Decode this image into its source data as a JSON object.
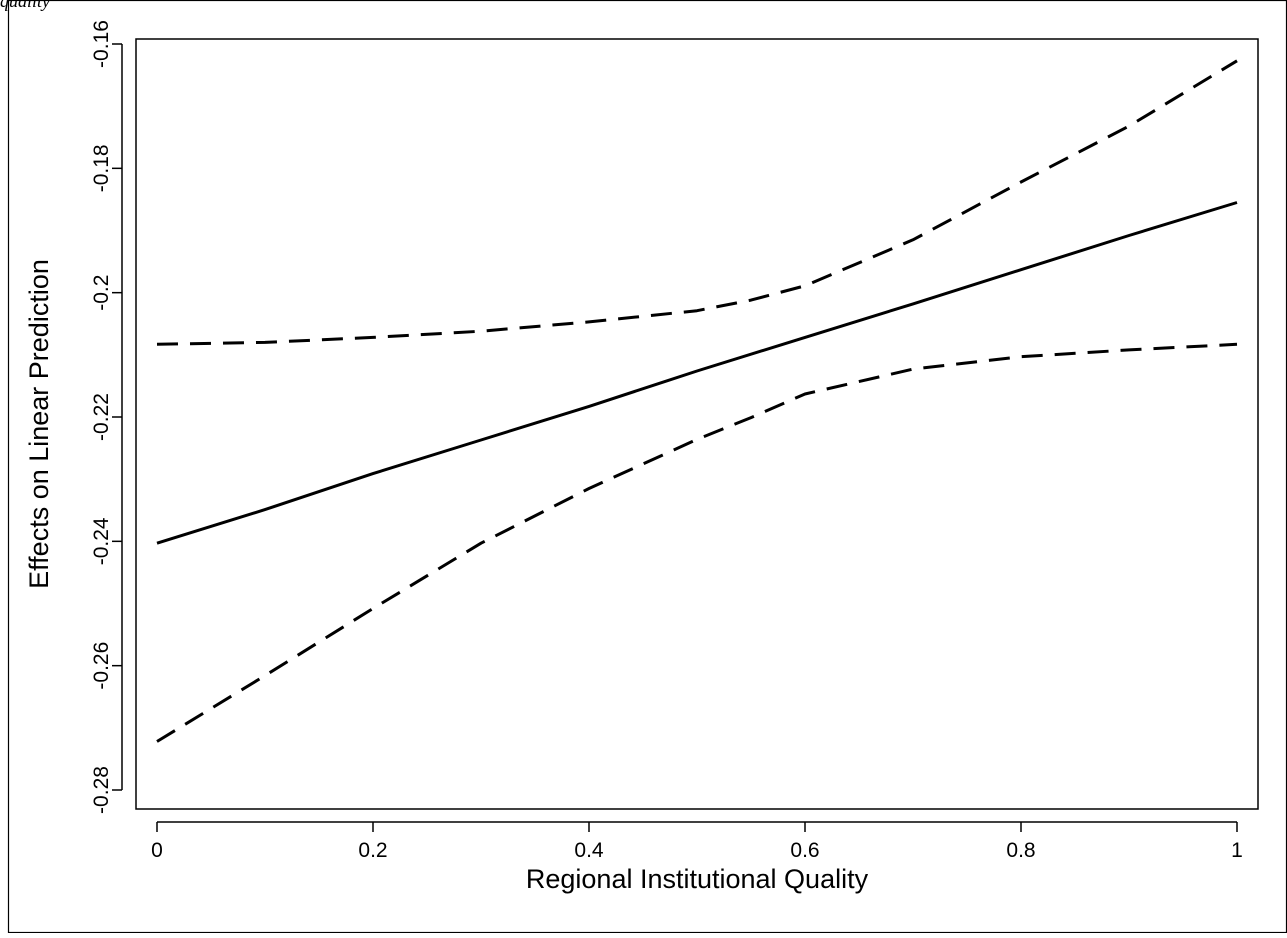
{
  "page": {
    "top_fragment": "quality"
  },
  "chart_data": {
    "type": "line",
    "title": "",
    "xlabel": "Regional Institutional Quality",
    "ylabel": "Effects on Linear Prediction",
    "xlim": [
      0,
      1
    ],
    "ylim": [
      -0.282,
      -0.157
    ],
    "x_ticks": [
      0,
      0.2,
      0.4,
      0.6,
      0.8,
      1
    ],
    "x_tick_labels": [
      "0",
      "0.2",
      "0.4",
      "0.6",
      "0.8",
      "1"
    ],
    "y_ticks": [
      -0.28,
      -0.26,
      -0.24,
      -0.22,
      -0.2,
      -0.18,
      -0.16
    ],
    "y_tick_labels": [
      "-0.28",
      "-0.26",
      "-0.24",
      "-0.22",
      "-0.2",
      "-0.18",
      "-0.16"
    ],
    "grid": false,
    "legend": "none",
    "series": [
      {
        "style": "solid",
        "x": [
          0,
          0.1,
          0.2,
          0.3,
          0.4,
          0.5,
          0.6,
          0.7,
          0.8,
          0.9,
          1.0
        ],
        "values": [
          -0.2403,
          -0.2349,
          -0.2291,
          -0.2237,
          -0.2183,
          -0.2126,
          -0.2072,
          -0.2018,
          -0.1963,
          -0.1908,
          -0.1855
        ]
      },
      {
        "style": "dashed",
        "x": [
          0,
          0.1,
          0.2,
          0.3,
          0.4,
          0.5,
          0.55,
          0.6,
          0.7,
          0.8,
          0.9,
          1.0
        ],
        "values": [
          -0.2083,
          -0.208,
          -0.2072,
          -0.2062,
          -0.2047,
          -0.2029,
          -0.2012,
          -0.1989,
          -0.1915,
          -0.1822,
          -0.1732,
          -0.1627
        ]
      },
      {
        "style": "dashed",
        "x": [
          0,
          0.1,
          0.2,
          0.3,
          0.4,
          0.5,
          0.55,
          0.6,
          0.7,
          0.8,
          0.9,
          1.0
        ],
        "values": [
          -0.2722,
          -0.2616,
          -0.2508,
          -0.2403,
          -0.2315,
          -0.2236,
          -0.2201,
          -0.2163,
          -0.2123,
          -0.2103,
          -0.2092,
          -0.2083
        ]
      }
    ]
  }
}
